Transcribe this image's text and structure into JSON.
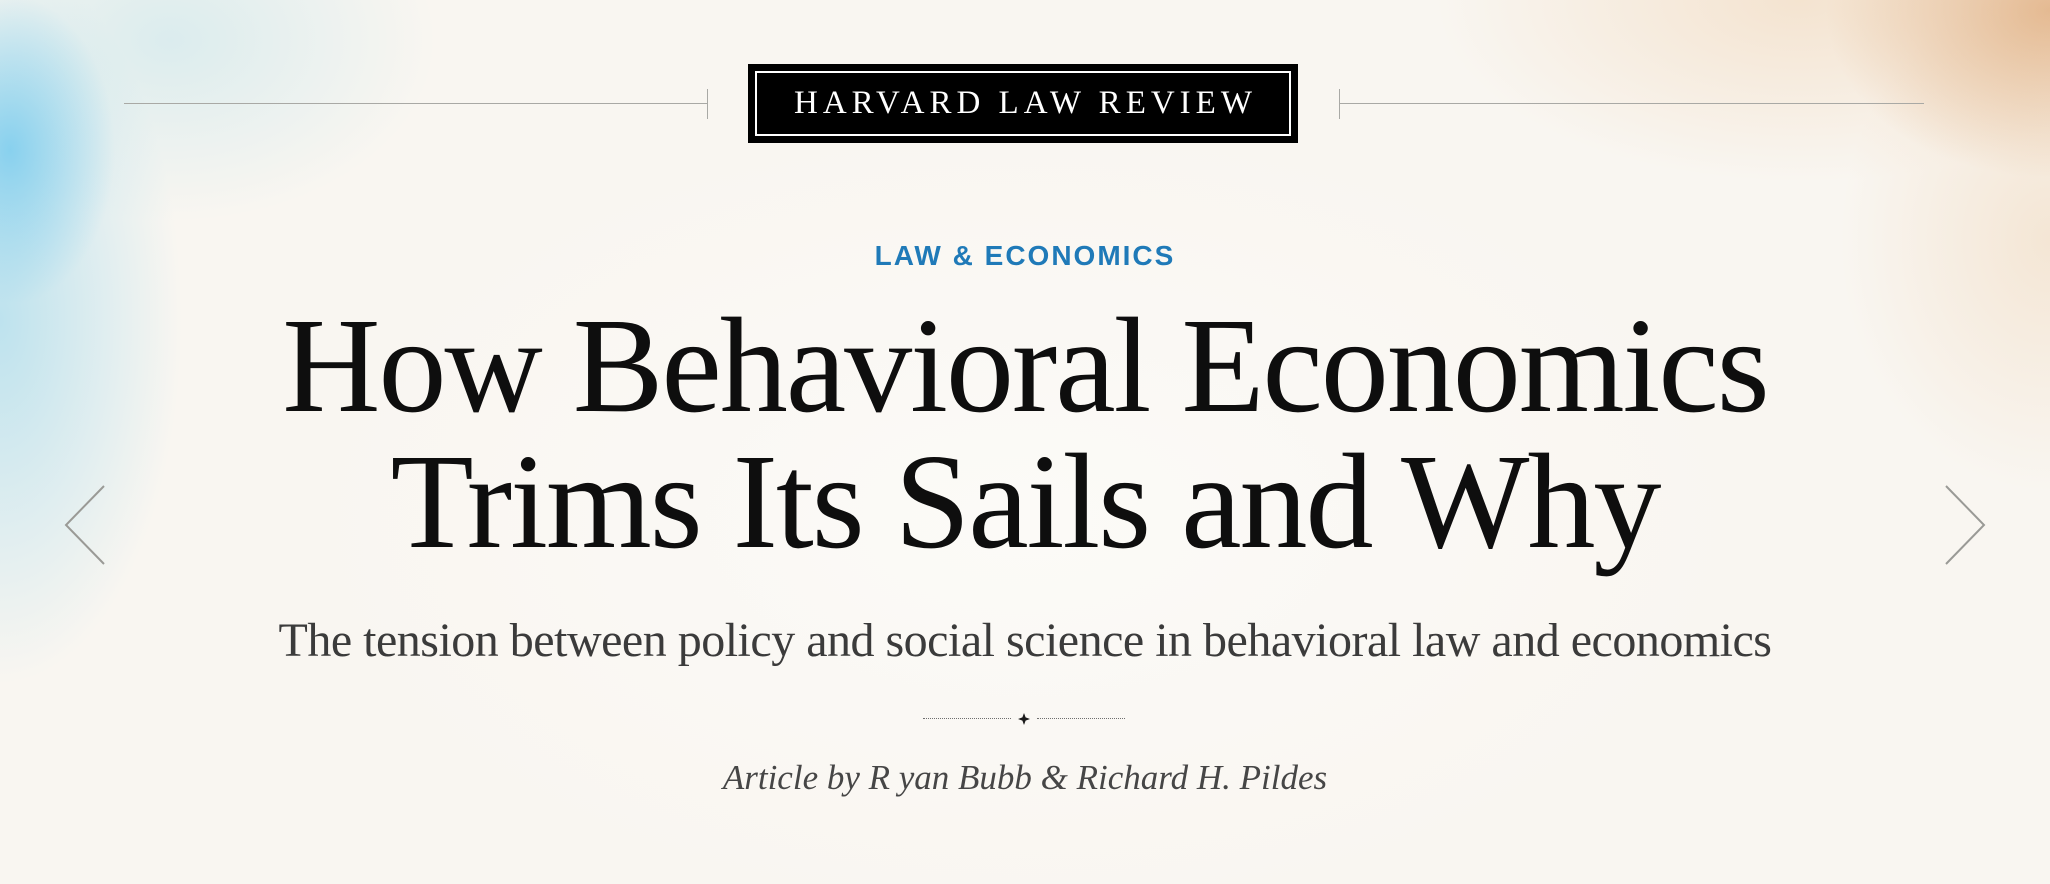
{
  "masthead": {
    "title": "HARVARD LAW REVIEW"
  },
  "article": {
    "category": "LAW & ECONOMICS",
    "title_lines": [
      "How Behavioral Economics",
      "Trims Its Sails and Why"
    ],
    "subtitle": "The tension between policy and social science in behavioral law and economics",
    "byline": "Article by R yan Bubb & Richard H. Pildes"
  },
  "navigation": {
    "prev_icon": "chevron-left-icon",
    "next_icon": "chevron-right-icon"
  },
  "colors": {
    "category": "#1f7ab8",
    "headline": "#0e0e0e",
    "masthead_bg": "#000000",
    "background": "#f9f6f1"
  }
}
